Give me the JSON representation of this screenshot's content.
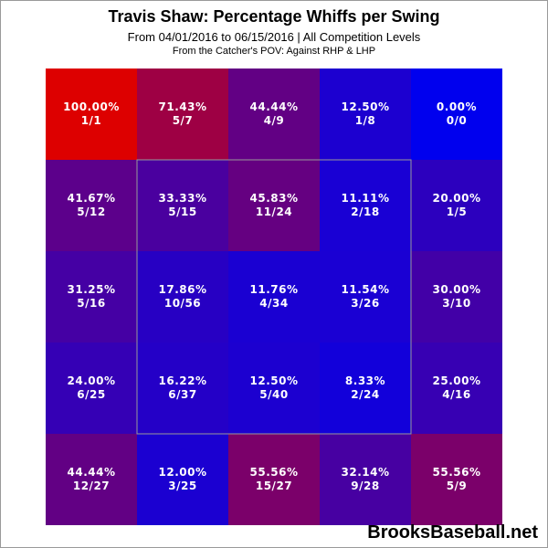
{
  "title": "Travis Shaw: Percentage Whiffs per Swing",
  "subtitle": "From 04/01/2016 to 06/15/2016 | All Competition Levels",
  "pov": "From the Catcher's POV:  Against RHP & LHP",
  "watermark": "BrooksBaseball.net",
  "chart_data": {
    "type": "heatmap",
    "title": "Travis Shaw: Percentage Whiffs per Swing",
    "rows": 5,
    "cols": 5,
    "strike_zone": "inner 3x3",
    "color_scale": {
      "low": "#0000ee",
      "high": "#dd0000"
    },
    "cells": [
      [
        {
          "pct": "100.00%",
          "count": "1/1",
          "value": 100.0
        },
        {
          "pct": "71.43%",
          "count": "5/7",
          "value": 71.43
        },
        {
          "pct": "44.44%",
          "count": "4/9",
          "value": 44.44
        },
        {
          "pct": "12.50%",
          "count": "1/8",
          "value": 12.5
        },
        {
          "pct": "0.00%",
          "count": "0/0",
          "value": 0.0
        }
      ],
      [
        {
          "pct": "41.67%",
          "count": "5/12",
          "value": 41.67
        },
        {
          "pct": "33.33%",
          "count": "5/15",
          "value": 33.33
        },
        {
          "pct": "45.83%",
          "count": "11/24",
          "value": 45.83
        },
        {
          "pct": "11.11%",
          "count": "2/18",
          "value": 11.11
        },
        {
          "pct": "20.00%",
          "count": "1/5",
          "value": 20.0
        }
      ],
      [
        {
          "pct": "31.25%",
          "count": "5/16",
          "value": 31.25
        },
        {
          "pct": "17.86%",
          "count": "10/56",
          "value": 17.86
        },
        {
          "pct": "11.76%",
          "count": "4/34",
          "value": 11.76
        },
        {
          "pct": "11.54%",
          "count": "3/26",
          "value": 11.54
        },
        {
          "pct": "30.00%",
          "count": "3/10",
          "value": 30.0
        }
      ],
      [
        {
          "pct": "24.00%",
          "count": "6/25",
          "value": 24.0
        },
        {
          "pct": "16.22%",
          "count": "6/37",
          "value": 16.22
        },
        {
          "pct": "12.50%",
          "count": "5/40",
          "value": 12.5
        },
        {
          "pct": "8.33%",
          "count": "2/24",
          "value": 8.33
        },
        {
          "pct": "25.00%",
          "count": "4/16",
          "value": 25.0
        }
      ],
      [
        {
          "pct": "44.44%",
          "count": "12/27",
          "value": 44.44
        },
        {
          "pct": "12.00%",
          "count": "3/25",
          "value": 12.0
        },
        {
          "pct": "55.56%",
          "count": "15/27",
          "value": 55.56
        },
        {
          "pct": "32.14%",
          "count": "9/28",
          "value": 32.14
        },
        {
          "pct": "55.56%",
          "count": "5/9",
          "value": 55.56
        }
      ]
    ]
  }
}
